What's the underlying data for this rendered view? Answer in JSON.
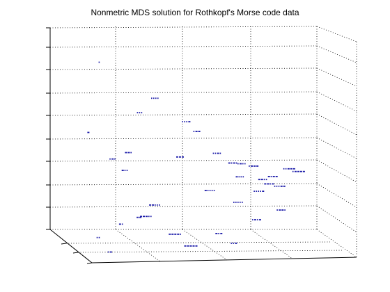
{
  "chart_data": {
    "type": "scatter",
    "title": "Nonmetric MDS solution for Rothkopf's Morse code data",
    "xlabel": "",
    "ylabel": "",
    "zlabel": "",
    "grid": true,
    "marker_color": "#1a1aa8",
    "points": [
      {
        "label": ".",
        "x": 0.1,
        "y": 0.55,
        "z": 0.92
      },
      {
        "label": "...",
        "x": 0.3,
        "y": 0.25,
        "z": 0.62
      },
      {
        "label": "-",
        "x": 0.05,
        "y": 0.6,
        "z": 0.58
      },
      {
        "label": "....",
        "x": 0.35,
        "y": 0.3,
        "z": 0.7
      },
      {
        "label": "...-",
        "x": 0.45,
        "y": 0.4,
        "z": 0.6
      },
      {
        "label": ".--",
        "x": 0.48,
        "y": 0.45,
        "z": 0.56
      },
      {
        "label": "--.",
        "x": 0.2,
        "y": 0.6,
        "z": 0.48
      },
      {
        "label": ".-.",
        "x": 0.15,
        "y": 0.55,
        "z": 0.44
      },
      {
        "label": "-..",
        "x": 0.18,
        "y": 0.65,
        "z": 0.4
      },
      {
        "label": "---",
        "x": 0.4,
        "y": 0.55,
        "z": 0.45
      },
      {
        "label": "..-.",
        "x": 0.55,
        "y": 0.5,
        "z": 0.46
      },
      {
        "label": "-.-.",
        "x": 0.6,
        "y": 0.55,
        "z": 0.42
      },
      {
        "label": "-...",
        "x": 0.62,
        "y": 0.6,
        "z": 0.36
      },
      {
        "label": ".-..",
        "x": 0.65,
        "y": 0.45,
        "z": 0.4
      },
      {
        "label": ".---",
        "x": 0.7,
        "y": 0.4,
        "z": 0.38
      },
      {
        "label": "--..",
        "x": 0.72,
        "y": 0.5,
        "z": 0.33
      },
      {
        "label": "--.-",
        "x": 0.75,
        "y": 0.45,
        "z": 0.3
      },
      {
        "label": "-.--",
        "x": 0.78,
        "y": 0.35,
        "z": 0.32
      },
      {
        "label": ".----",
        "x": 0.9,
        "y": 0.2,
        "z": 0.32
      },
      {
        "label": "..---",
        "x": 0.85,
        "y": 0.3,
        "z": 0.35
      },
      {
        "label": "...--",
        "x": 0.8,
        "y": 0.4,
        "z": 0.28
      },
      {
        "label": "....-",
        "x": 0.7,
        "y": 0.55,
        "z": 0.28
      },
      {
        "label": ".....",
        "x": 0.6,
        "y": 0.7,
        "z": 0.25
      },
      {
        "label": "-....",
        "x": 0.5,
        "y": 0.65,
        "z": 0.3
      },
      {
        "label": "--...",
        "x": 0.3,
        "y": 0.6,
        "z": 0.22
      },
      {
        "label": "---..",
        "x": 0.25,
        "y": 0.7,
        "z": 0.18
      },
      {
        "label": "----.",
        "x": 0.35,
        "y": 0.75,
        "z": 0.1
      },
      {
        "label": "-----",
        "x": 0.4,
        "y": 0.8,
        "z": 0.05
      },
      {
        "label": ".-",
        "x": 0.1,
        "y": 0.8,
        "z": 0.02
      },
      {
        "label": "..",
        "x": 0.05,
        "y": 0.85,
        "z": 0.1
      },
      {
        "label": "-.",
        "x": 0.15,
        "y": 0.75,
        "z": 0.15
      },
      {
        "label": "--",
        "x": 0.2,
        "y": 0.85,
        "z": 0.2
      },
      {
        "label": "-.-",
        "x": 0.5,
        "y": 0.85,
        "z": 0.12
      },
      {
        "label": ".-.-",
        "x": 0.65,
        "y": 0.8,
        "z": 0.18
      },
      {
        "label": "..-",
        "x": 0.55,
        "y": 0.9,
        "z": 0.08
      },
      {
        "label": ".--.",
        "x": 0.75,
        "y": 0.75,
        "z": 0.22
      }
    ]
  }
}
